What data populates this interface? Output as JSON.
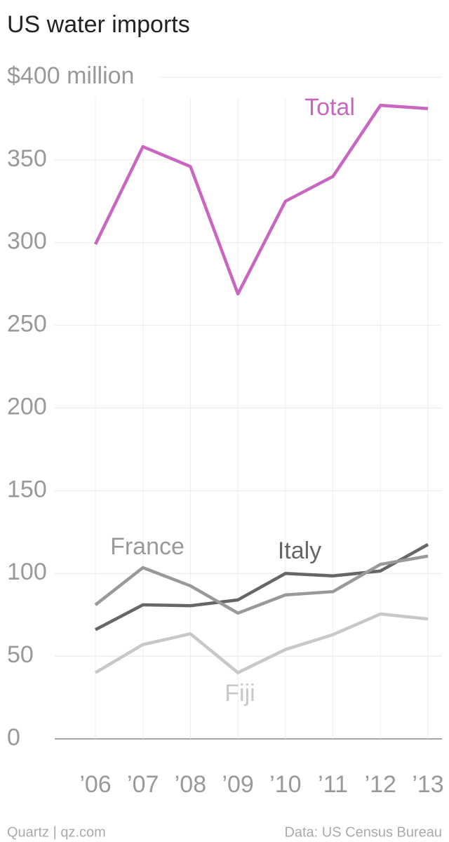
{
  "chart_data": {
    "type": "line",
    "title": "US water imports",
    "categories": [
      "’06",
      "’07",
      "’08",
      "’09",
      "’10",
      "’11",
      "’12",
      "’13"
    ],
    "series": [
      {
        "name": "Total",
        "color": "#c966c0",
        "values": [
          299,
          358,
          346,
          269,
          325,
          340,
          383,
          381
        ]
      },
      {
        "name": "France",
        "color": "#999999",
        "values": [
          81,
          103.5,
          92.5,
          76,
          87,
          89,
          105.5,
          110.5
        ]
      },
      {
        "name": "Italy",
        "color": "#666666",
        "values": [
          66,
          81,
          80.5,
          84,
          100,
          98.5,
          101.5,
          117.5
        ]
      },
      {
        "name": "Fiji",
        "color": "#c8c8c8",
        "values": [
          40,
          57,
          63.5,
          40,
          54,
          63,
          75.5,
          72.5
        ]
      }
    ],
    "ylim": [
      0,
      400
    ],
    "yticks": [
      0,
      50,
      100,
      150,
      200,
      250,
      300,
      350,
      {
        "value": 400,
        "label": "$400 million"
      }
    ],
    "grid": true,
    "credit": "Quartz | qz.com",
    "source": "Data: US Census Bureau"
  }
}
